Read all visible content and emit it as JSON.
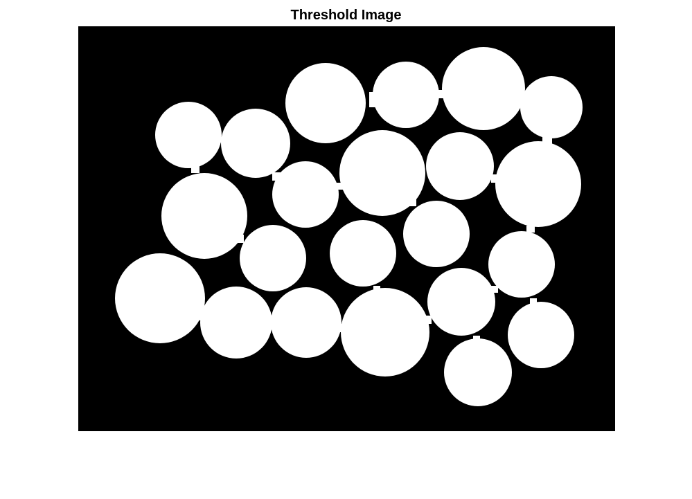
{
  "figure": {
    "title": "Threshold Image"
  },
  "image": {
    "description_kind": "binary threshold mask",
    "background_color": "#000000",
    "foreground_color": "#ffffff"
  }
}
